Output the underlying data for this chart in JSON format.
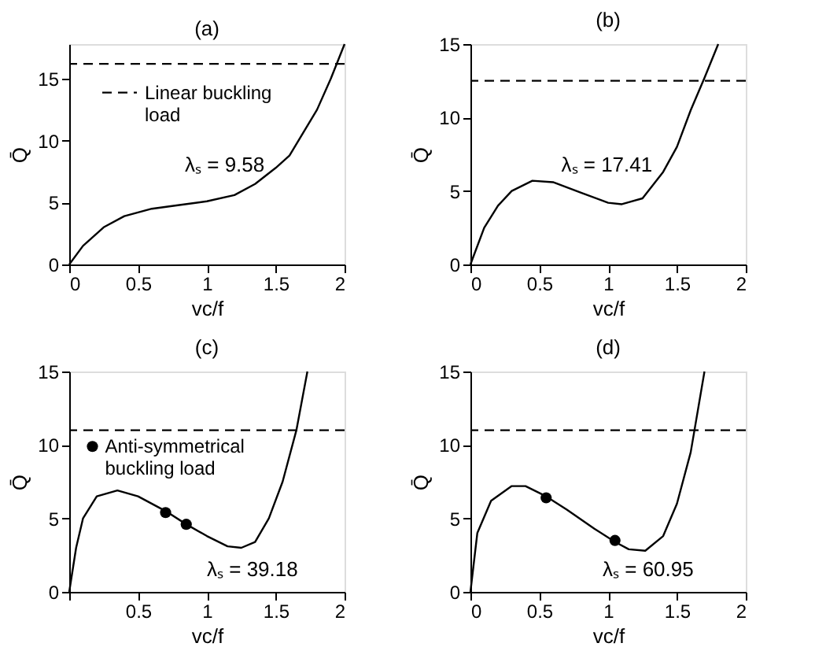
{
  "chart_data": [
    {
      "type": "line",
      "title": "(a)",
      "xlabel": "vc/f",
      "ylabel": "Q̄",
      "xlim": [
        0,
        2
      ],
      "ylim": [
        0,
        17.8
      ],
      "xticks": [
        0,
        0.5,
        1,
        1.5,
        2
      ],
      "yticks": [
        0,
        5,
        10,
        15
      ],
      "grid": false,
      "legend": "top left",
      "line_style": "solid",
      "series": [
        {
          "color": "#000000",
          "x": [
            0,
            0.1,
            0.25,
            0.4,
            0.6,
            0.8,
            1,
            1.2,
            1.35,
            1.5,
            1.6,
            1.8,
            1.9,
            2
          ],
          "values": [
            0,
            1.5,
            3,
            3.9,
            4.5,
            4.8,
            5.1,
            5.6,
            6.5,
            7.8,
            8.8,
            12.5,
            15,
            17.8
          ]
        }
      ],
      "ref_lines": [
        {
          "axis": "y",
          "value": 16.2,
          "label": "Linear buckling load",
          "line_style": "dashed",
          "color": "#000000"
        }
      ],
      "annotations": [
        "λₛ = 9.58"
      ]
    },
    {
      "type": "line",
      "title": "(b)",
      "xlabel": "vc/f",
      "ylabel": "Q̄",
      "xlim": [
        0,
        2
      ],
      "ylim": [
        0,
        15
      ],
      "xticks": [
        0,
        0.5,
        1,
        1.5,
        2
      ],
      "yticks": [
        0,
        5,
        10,
        15
      ],
      "grid": false,
      "line_style": "solid",
      "series": [
        {
          "color": "#000000",
          "x": [
            0,
            0.1,
            0.2,
            0.3,
            0.45,
            0.6,
            0.8,
            1,
            1.1,
            1.25,
            1.4,
            1.5,
            1.6,
            1.7,
            1.8
          ],
          "values": [
            0,
            2.5,
            4,
            5,
            5.7,
            5.6,
            4.9,
            4.2,
            4.1,
            4.5,
            6.3,
            8,
            10.5,
            12.7,
            15
          ]
        }
      ],
      "ref_lines": [
        {
          "axis": "y",
          "value": 12.5,
          "line_style": "dashed",
          "color": "#000000"
        }
      ],
      "annotations": [
        "λₛ = 17.41"
      ]
    },
    {
      "type": "line",
      "title": "(c)",
      "xlabel": "vc/f",
      "ylabel": "Q̄",
      "xlim": [
        0,
        2
      ],
      "ylim": [
        0,
        15
      ],
      "xticks": [
        {
          "value": 0,
          "label": null
        },
        0.5,
        1,
        1.5,
        2
      ],
      "yticks": [
        0,
        5,
        10,
        15
      ],
      "grid": false,
      "legend": "top left",
      "line_style": "solid",
      "series": [
        {
          "color": "#000000",
          "x": [
            0,
            0.05,
            0.1,
            0.2,
            0.35,
            0.5,
            0.7,
            0.85,
            1,
            1.15,
            1.25,
            1.35,
            1.45,
            1.55,
            1.65,
            1.73
          ],
          "values": [
            0,
            3,
            5,
            6.5,
            6.9,
            6.5,
            5.5,
            4.6,
            3.8,
            3.1,
            3,
            3.4,
            5,
            7.5,
            11,
            15
          ]
        },
        {
          "type": "scatter",
          "name": "Anti-symmetrical buckling load",
          "color": "#000000",
          "marker": "circle",
          "x": [
            0.7,
            0.85
          ],
          "values": [
            5.4,
            4.6
          ]
        }
      ],
      "ref_lines": [
        {
          "axis": "y",
          "value": 11,
          "line_style": "dashed",
          "color": "#000000"
        }
      ],
      "annotations": [
        "λₛ = 39.18"
      ]
    },
    {
      "type": "line",
      "title": "(d)",
      "xlabel": "vc/f",
      "ylabel": "Q̄",
      "xlim": [
        0,
        2
      ],
      "ylim": [
        0,
        15
      ],
      "xticks": [
        0,
        0.5,
        1,
        1.5,
        2
      ],
      "yticks": [
        0,
        5,
        10,
        15
      ],
      "grid": false,
      "line_style": "solid",
      "series": [
        {
          "color": "#000000",
          "x": [
            0,
            0.05,
            0.15,
            0.3,
            0.4,
            0.55,
            0.7,
            0.9,
            1.05,
            1.15,
            1.27,
            1.4,
            1.5,
            1.6,
            1.7
          ],
          "values": [
            0,
            4,
            6.2,
            7.2,
            7.2,
            6.5,
            5.6,
            4.3,
            3.4,
            2.9,
            2.8,
            3.8,
            6,
            9.5,
            15
          ]
        },
        {
          "type": "scatter",
          "color": "#000000",
          "marker": "circle",
          "x": [
            0.55,
            1.05
          ],
          "values": [
            6.4,
            3.5
          ]
        }
      ],
      "ref_lines": [
        {
          "axis": "y",
          "value": 11,
          "line_style": "dashed",
          "color": "#000000"
        }
      ],
      "annotations": [
        "λₛ = 60.95"
      ]
    }
  ]
}
